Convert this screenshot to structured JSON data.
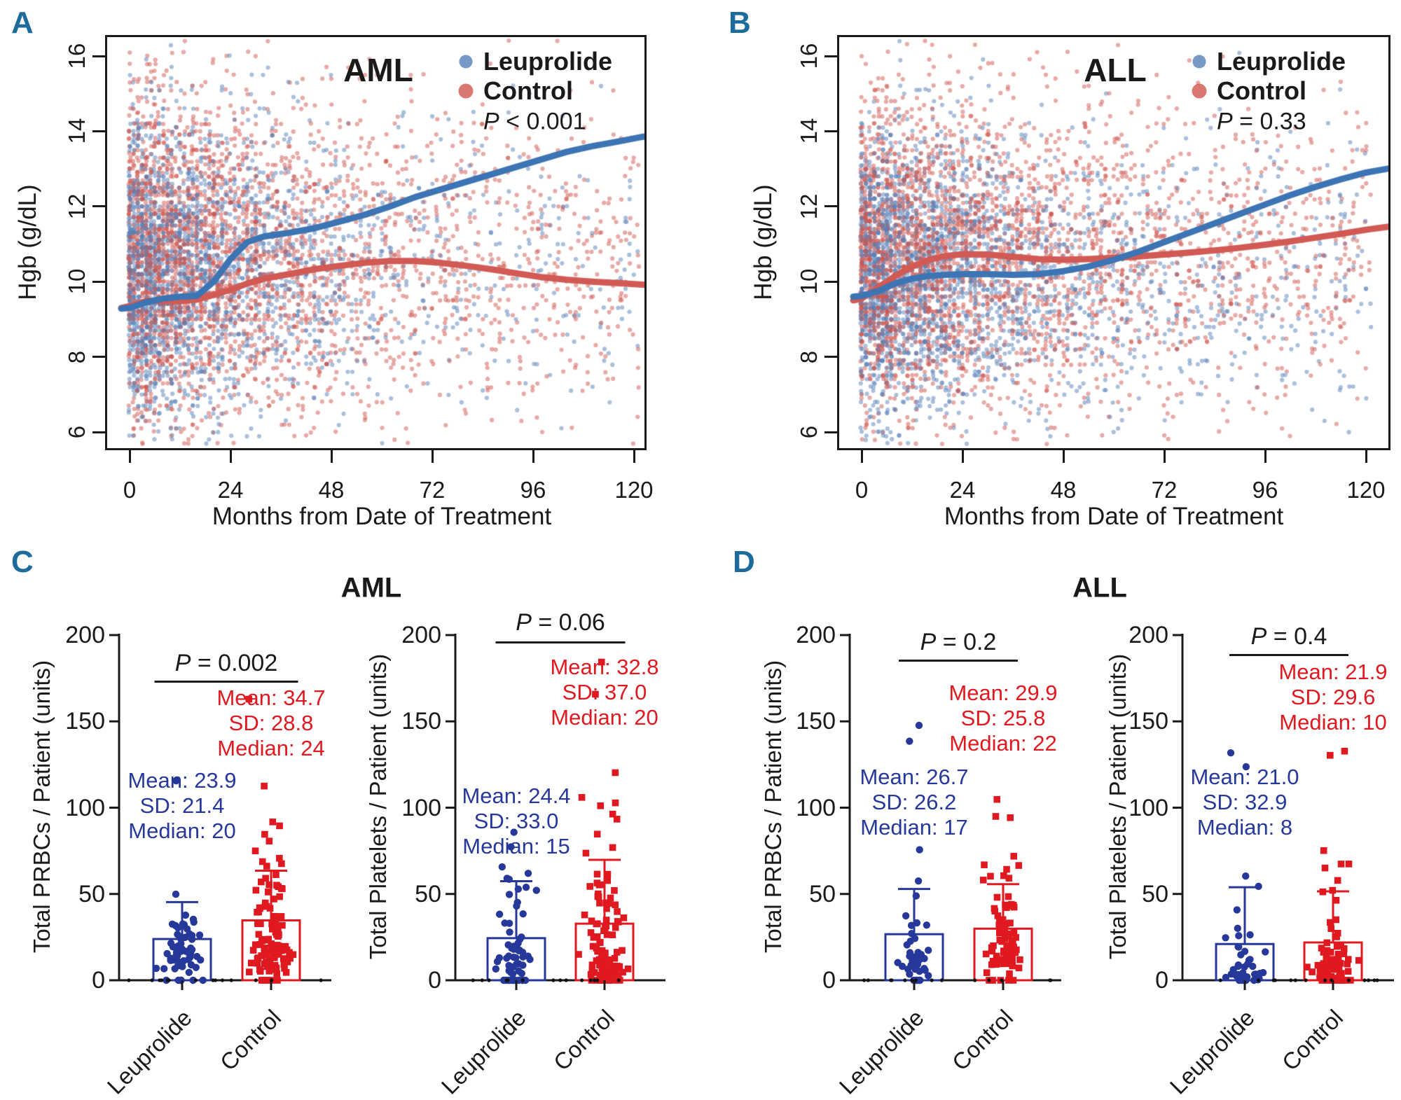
{
  "figure": {
    "panel_labels": [
      "A",
      "B",
      "C",
      "D"
    ],
    "colors": {
      "panel_letter": "#1c6b9d",
      "scatter_blue": "#5580b8",
      "scatter_red": "#cf564e",
      "trend_blue": "#3d74b3",
      "trend_red": "#d25a55",
      "bar_blue": "#27389b",
      "bar_red": "#e01920",
      "axis_black": "#1a1a1a"
    },
    "stats_field_labels": {
      "mean": "Mean",
      "sd": "SD",
      "median": "Median"
    }
  },
  "chart_data": [
    {
      "panel": "A",
      "type": "scatter",
      "title": "AML",
      "xlabel": "Months from Date of Treatment",
      "ylabel": "Hgb (g/dL)",
      "xticks": [
        0,
        24,
        48,
        72,
        96,
        120
      ],
      "yticks": [
        6,
        8,
        10,
        12,
        14,
        16
      ],
      "xlim": [
        -5,
        123
      ],
      "ylim": [
        5.5,
        16.6
      ],
      "legend": [
        {
          "name": "Leuprolide",
          "color": "#5580b8"
        },
        {
          "name": "Control",
          "color": "#cf564e"
        }
      ],
      "p_value": {
        "prefix": "P",
        "text": "< 0.001"
      },
      "series": [
        {
          "name": "Leuprolide smoothed mean",
          "color": "#3d74b3",
          "points": [
            [
              -2,
              9.28
            ],
            [
              0,
              9.3
            ],
            [
              4,
              9.45
            ],
            [
              8,
              9.55
            ],
            [
              12,
              9.6
            ],
            [
              16,
              9.62
            ],
            [
              20,
              10.0
            ],
            [
              24,
              10.6
            ],
            [
              28,
              11.05
            ],
            [
              32,
              11.2
            ],
            [
              38,
              11.3
            ],
            [
              44,
              11.42
            ],
            [
              50,
              11.6
            ],
            [
              56,
              11.78
            ],
            [
              62,
              12.0
            ],
            [
              68,
              12.25
            ],
            [
              74,
              12.45
            ],
            [
              80,
              12.65
            ],
            [
              86,
              12.85
            ],
            [
              92,
              13.05
            ],
            [
              98,
              13.25
            ],
            [
              104,
              13.45
            ],
            [
              110,
              13.6
            ],
            [
              116,
              13.72
            ],
            [
              122,
              13.85
            ],
            [
              126,
              13.92
            ]
          ]
        },
        {
          "name": "Control smoothed mean",
          "color": "#d25a55",
          "points": [
            [
              -2,
              9.3
            ],
            [
              0,
              9.35
            ],
            [
              4,
              9.48
            ],
            [
              8,
              9.5
            ],
            [
              12,
              9.48
            ],
            [
              16,
              9.52
            ],
            [
              20,
              9.65
            ],
            [
              24,
              9.78
            ],
            [
              28,
              9.95
            ],
            [
              32,
              10.08
            ],
            [
              38,
              10.2
            ],
            [
              44,
              10.33
            ],
            [
              50,
              10.42
            ],
            [
              56,
              10.5
            ],
            [
              62,
              10.55
            ],
            [
              68,
              10.55
            ],
            [
              74,
              10.5
            ],
            [
              80,
              10.42
            ],
            [
              86,
              10.33
            ],
            [
              92,
              10.22
            ],
            [
              98,
              10.12
            ],
            [
              104,
              10.05
            ],
            [
              110,
              10.0
            ],
            [
              116,
              9.96
            ],
            [
              122,
              9.92
            ],
            [
              126,
              9.9
            ]
          ]
        }
      ],
      "scatter_hint": {
        "leuprolide": {
          "n": 2300,
          "x_exp_mean": 20,
          "x_uniform_tail": 0.15,
          "y_mean": 10.35,
          "y_sd": 2.0
        },
        "control": {
          "n": 3000,
          "x_exp_mean": 27,
          "x_uniform_tail": 0.2,
          "y_mean": 10.55,
          "y_sd": 2.1
        }
      }
    },
    {
      "panel": "B",
      "type": "scatter",
      "title": "ALL",
      "xlabel": "Months from Date of Treatment",
      "ylabel": "Hgb (g/dL)",
      "xticks": [
        0,
        24,
        48,
        72,
        96,
        120
      ],
      "yticks": [
        6,
        8,
        10,
        12,
        14,
        16
      ],
      "xlim": [
        -5,
        123
      ],
      "ylim": [
        5.5,
        16.6
      ],
      "legend": [
        {
          "name": "Leuprolide",
          "color": "#5580b8"
        },
        {
          "name": "Control",
          "color": "#cf564e"
        }
      ],
      "p_value": {
        "prefix": "P",
        "text": "= 0.33"
      },
      "series": [
        {
          "name": "Leuprolide smoothed mean",
          "color": "#3d74b3",
          "points": [
            [
              -2,
              9.6
            ],
            [
              0,
              9.62
            ],
            [
              4,
              9.75
            ],
            [
              8,
              9.95
            ],
            [
              12,
              10.08
            ],
            [
              16,
              10.15
            ],
            [
              20,
              10.18
            ],
            [
              24,
              10.2
            ],
            [
              30,
              10.2
            ],
            [
              36,
              10.18
            ],
            [
              42,
              10.2
            ],
            [
              48,
              10.28
            ],
            [
              54,
              10.4
            ],
            [
              60,
              10.58
            ],
            [
              66,
              10.8
            ],
            [
              72,
              11.05
            ],
            [
              78,
              11.3
            ],
            [
              84,
              11.55
            ],
            [
              90,
              11.8
            ],
            [
              96,
              12.05
            ],
            [
              102,
              12.3
            ],
            [
              108,
              12.52
            ],
            [
              114,
              12.72
            ],
            [
              120,
              12.9
            ],
            [
              126,
              13.02
            ]
          ]
        },
        {
          "name": "Control smoothed mean",
          "color": "#d25a55",
          "points": [
            [
              -2,
              9.5
            ],
            [
              0,
              9.55
            ],
            [
              4,
              9.85
            ],
            [
              8,
              10.15
            ],
            [
              12,
              10.4
            ],
            [
              16,
              10.58
            ],
            [
              20,
              10.68
            ],
            [
              24,
              10.73
            ],
            [
              30,
              10.72
            ],
            [
              36,
              10.66
            ],
            [
              42,
              10.6
            ],
            [
              48,
              10.58
            ],
            [
              54,
              10.6
            ],
            [
              60,
              10.63
            ],
            [
              66,
              10.67
            ],
            [
              72,
              10.72
            ],
            [
              78,
              10.77
            ],
            [
              84,
              10.83
            ],
            [
              90,
              10.9
            ],
            [
              96,
              10.98
            ],
            [
              102,
              11.07
            ],
            [
              108,
              11.17
            ],
            [
              114,
              11.27
            ],
            [
              120,
              11.38
            ],
            [
              126,
              11.47
            ]
          ]
        }
      ],
      "scatter_hint": {
        "leuprolide": {
          "n": 2500,
          "x_exp_mean": 22,
          "x_uniform_tail": 0.16,
          "y_mean": 10.15,
          "y_sd": 1.9
        },
        "control": {
          "n": 3100,
          "x_exp_mean": 30,
          "x_uniform_tail": 0.22,
          "y_mean": 10.65,
          "y_sd": 2.0
        }
      }
    },
    {
      "panel": "C",
      "type": "bar-scatter",
      "title": "AML",
      "subplots": [
        {
          "ylabel": "Total PRBCs / Patient (units)",
          "p_value": {
            "prefix": "P",
            "text": "= 0.002"
          },
          "yticks": [
            0,
            50,
            100,
            150,
            200
          ],
          "ylim": [
            0,
            200
          ],
          "categories": [
            "Leuprolide",
            "Control"
          ],
          "groups": [
            {
              "name": "Leuprolide",
              "color": "#27389b",
              "marker": "circle",
              "mean": "23.9",
              "sd": "21.4",
              "median": "20",
              "n": 60,
              "zero_frac": 0.12
            },
            {
              "name": "Control",
              "color": "#e01920",
              "marker": "square",
              "mean": "34.7",
              "sd": "28.8",
              "median": "24",
              "n": 110,
              "zero_frac": 0.08
            }
          ]
        },
        {
          "ylabel": "Total Platelets / Patient (units)",
          "p_value": {
            "prefix": "P",
            "text": "= 0.06"
          },
          "yticks": [
            0,
            50,
            100,
            150,
            200
          ],
          "ylim": [
            0,
            200
          ],
          "categories": [
            "Leuprolide",
            "Control"
          ],
          "groups": [
            {
              "name": "Leuprolide",
              "color": "#27389b",
              "marker": "circle",
              "mean": "24.4",
              "sd": "33.0",
              "median": "15",
              "n": 60,
              "zero_frac": 0.18
            },
            {
              "name": "Control",
              "color": "#e01920",
              "marker": "square",
              "mean": "32.8",
              "sd": "37.0",
              "median": "20",
              "n": 110,
              "zero_frac": 0.12
            }
          ]
        }
      ]
    },
    {
      "panel": "D",
      "type": "bar-scatter",
      "title": "ALL",
      "subplots": [
        {
          "ylabel": "Total PRBCs / Patient (units)",
          "p_value": {
            "prefix": "P",
            "text": "= 0.2"
          },
          "yticks": [
            0,
            50,
            100,
            150,
            200
          ],
          "ylim": [
            0,
            200
          ],
          "categories": [
            "Leuprolide",
            "Control"
          ],
          "groups": [
            {
              "name": "Leuprolide",
              "color": "#27389b",
              "marker": "circle",
              "mean": "26.7",
              "sd": "26.2",
              "median": "17",
              "n": 40,
              "zero_frac": 0.1
            },
            {
              "name": "Control",
              "color": "#e01920",
              "marker": "square",
              "mean": "29.9",
              "sd": "25.8",
              "median": "22",
              "n": 85,
              "zero_frac": 0.06
            }
          ]
        },
        {
          "ylabel": "Total Platelets / Patient (units)",
          "p_value": {
            "prefix": "P",
            "text": "= 0.4"
          },
          "yticks": [
            0,
            50,
            100,
            150,
            200
          ],
          "ylim": [
            0,
            200
          ],
          "categories": [
            "Leuprolide",
            "Control"
          ],
          "groups": [
            {
              "name": "Leuprolide",
              "color": "#27389b",
              "marker": "circle",
              "mean": "21.0",
              "sd": "32.9",
              "median": "8",
              "n": 40,
              "zero_frac": 0.2
            },
            {
              "name": "Control",
              "color": "#e01920",
              "marker": "square",
              "mean": "21.9",
              "sd": "29.6",
              "median": "10",
              "n": 85,
              "zero_frac": 0.15
            }
          ]
        }
      ]
    }
  ]
}
